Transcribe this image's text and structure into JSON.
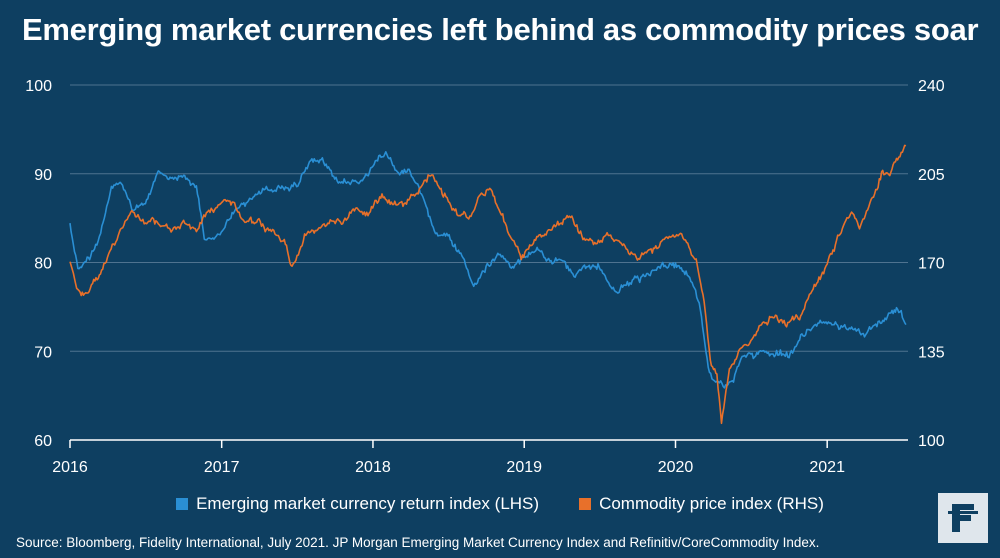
{
  "title": "Emerging market currencies left behind as commodity prices soar",
  "source": "Source: Bloomberg, Fidelity International, July 2021. JP Morgan Emerging Market Currency Index and Refinitiv/CoreCommodity Index.",
  "logo": {
    "text": "F",
    "icon": "fidelity-logo-icon"
  },
  "colors": {
    "background": "#0e3f61",
    "em_series": "#2a8fd4",
    "commodity_series": "#e8702a",
    "grid": "#4f7390",
    "logo_bg": "#dfe6ec",
    "logo_fg": "#0e3f61"
  },
  "chart_data": {
    "type": "line",
    "x_ticks": [
      "2016",
      "2017",
      "2018",
      "2019",
      "2020",
      "2021"
    ],
    "xlim": [
      "2016-01-01",
      "2021-07-15"
    ],
    "left_axis": {
      "ticks": [
        "60",
        "70",
        "80",
        "90",
        "100"
      ],
      "ylim": [
        60,
        100
      ]
    },
    "right_axis": {
      "ticks": [
        "100",
        "135",
        "170",
        "205",
        "240"
      ],
      "ylim": [
        100,
        240
      ]
    },
    "grid": true,
    "legend_position": "bottom",
    "series": [
      {
        "name": "Emerging market currency return index (LHS)",
        "axis": "left",
        "points": [
          [
            "2016-01-01",
            84.0
          ],
          [
            "2016-01-20",
            79.5
          ],
          [
            "2016-02-20",
            80.5
          ],
          [
            "2016-03-15",
            83.5
          ],
          [
            "2016-04-10",
            88.5
          ],
          [
            "2016-05-01",
            89.5
          ],
          [
            "2016-06-01",
            86.0
          ],
          [
            "2016-07-01",
            87.0
          ],
          [
            "2016-08-01",
            90.5
          ],
          [
            "2016-09-01",
            89.0
          ],
          [
            "2016-10-01",
            89.5
          ],
          [
            "2016-11-01",
            88.5
          ],
          [
            "2016-11-20",
            83.0
          ],
          [
            "2016-12-31",
            83.5
          ],
          [
            "2017-02-01",
            86.0
          ],
          [
            "2017-03-01",
            86.5
          ],
          [
            "2017-04-01",
            88.0
          ],
          [
            "2017-05-01",
            88.5
          ],
          [
            "2017-06-01",
            88.5
          ],
          [
            "2017-07-01",
            89.0
          ],
          [
            "2017-08-01",
            91.5
          ],
          [
            "2017-09-01",
            92.0
          ],
          [
            "2017-10-01",
            89.5
          ],
          [
            "2017-11-01",
            89.0
          ],
          [
            "2017-12-01",
            89.5
          ],
          [
            "2018-01-15",
            91.5
          ],
          [
            "2018-02-01",
            92.5
          ],
          [
            "2018-03-01",
            90.5
          ],
          [
            "2018-04-01",
            90.5
          ],
          [
            "2018-05-01",
            87.5
          ],
          [
            "2018-06-01",
            83.5
          ],
          [
            "2018-07-01",
            83.0
          ],
          [
            "2018-08-15",
            79.5
          ],
          [
            "2018-09-01",
            77.5
          ],
          [
            "2018-10-01",
            79.5
          ],
          [
            "2018-11-01",
            80.5
          ],
          [
            "2018-12-01",
            79.5
          ],
          [
            "2019-01-01",
            80.5
          ],
          [
            "2019-02-01",
            81.5
          ],
          [
            "2019-03-01",
            80.5
          ],
          [
            "2019-04-01",
            80.0
          ],
          [
            "2019-05-01",
            78.5
          ],
          [
            "2019-06-01",
            79.5
          ],
          [
            "2019-07-01",
            79.5
          ],
          [
            "2019-08-01",
            77.0
          ],
          [
            "2019-09-01",
            77.5
          ],
          [
            "2019-10-01",
            78.0
          ],
          [
            "2019-11-01",
            78.5
          ],
          [
            "2019-12-01",
            79.5
          ],
          [
            "2020-01-15",
            79.5
          ],
          [
            "2020-02-10",
            77.5
          ],
          [
            "2020-03-01",
            75.0
          ],
          [
            "2020-03-20",
            68.0
          ],
          [
            "2020-04-01",
            66.5
          ],
          [
            "2020-05-01",
            66.0
          ],
          [
            "2020-05-20",
            67.0
          ],
          [
            "2020-06-10",
            69.5
          ],
          [
            "2020-07-01",
            69.5
          ],
          [
            "2020-08-01",
            70.0
          ],
          [
            "2020-09-01",
            70.0
          ],
          [
            "2020-10-01",
            69.5
          ],
          [
            "2020-11-01",
            71.5
          ],
          [
            "2020-12-01",
            73.0
          ],
          [
            "2021-01-01",
            73.5
          ],
          [
            "2021-02-01",
            73.0
          ],
          [
            "2021-03-01",
            72.5
          ],
          [
            "2021-04-01",
            71.5
          ],
          [
            "2021-05-01",
            73.0
          ],
          [
            "2021-06-01",
            74.0
          ],
          [
            "2021-06-20",
            74.5
          ],
          [
            "2021-07-10",
            73.0
          ]
        ]
      },
      {
        "name": "Commodity price index (RHS)",
        "axis": "right",
        "points": [
          [
            "2016-01-01",
            170.0
          ],
          [
            "2016-01-20",
            160.0
          ],
          [
            "2016-02-05",
            157.0
          ],
          [
            "2016-03-01",
            163.0
          ],
          [
            "2016-03-20",
            168.0
          ],
          [
            "2016-04-15",
            178.0
          ],
          [
            "2016-05-10",
            185.0
          ],
          [
            "2016-06-01",
            191.0
          ],
          [
            "2016-07-01",
            186.0
          ],
          [
            "2016-08-01",
            185.0
          ],
          [
            "2016-09-01",
            182.0
          ],
          [
            "2016-10-01",
            186.0
          ],
          [
            "2016-11-01",
            183.0
          ],
          [
            "2016-12-01",
            190.0
          ],
          [
            "2017-01-01",
            194.0
          ],
          [
            "2017-02-01",
            192.0
          ],
          [
            "2017-03-01",
            186.0
          ],
          [
            "2017-04-01",
            185.0
          ],
          [
            "2017-05-01",
            181.0
          ],
          [
            "2017-06-01",
            178.0
          ],
          [
            "2017-06-20",
            168.0
          ],
          [
            "2017-07-20",
            180.0
          ],
          [
            "2017-08-15",
            182.0
          ],
          [
            "2017-09-20",
            185.0
          ],
          [
            "2017-10-20",
            186.0
          ],
          [
            "2017-11-20",
            191.0
          ],
          [
            "2017-12-20",
            190.0
          ],
          [
            "2018-01-20",
            196.0
          ],
          [
            "2018-02-20",
            192.0
          ],
          [
            "2018-03-20",
            193.0
          ],
          [
            "2018-04-20",
            197.0
          ],
          [
            "2018-05-20",
            205.0
          ],
          [
            "2018-06-20",
            198.0
          ],
          [
            "2018-07-20",
            190.0
          ],
          [
            "2018-08-20",
            188.0
          ],
          [
            "2018-09-20",
            196.0
          ],
          [
            "2018-10-10",
            199.0
          ],
          [
            "2018-11-01",
            192.0
          ],
          [
            "2018-12-01",
            180.0
          ],
          [
            "2018-12-25",
            172.0
          ],
          [
            "2019-01-20",
            178.0
          ],
          [
            "2019-02-20",
            182.0
          ],
          [
            "2019-03-20",
            184.0
          ],
          [
            "2019-04-20",
            188.0
          ],
          [
            "2019-05-20",
            181.0
          ],
          [
            "2019-06-20",
            177.0
          ],
          [
            "2019-07-20",
            180.0
          ],
          [
            "2019-08-20",
            178.0
          ],
          [
            "2019-09-10",
            175.0
          ],
          [
            "2019-10-01",
            171.0
          ],
          [
            "2019-10-20",
            174.0
          ],
          [
            "2019-11-20",
            176.0
          ],
          [
            "2019-12-20",
            180.0
          ],
          [
            "2020-01-10",
            182.0
          ],
          [
            "2020-01-25",
            180.0
          ],
          [
            "2020-02-20",
            172.0
          ],
          [
            "2020-03-10",
            155.0
          ],
          [
            "2020-03-25",
            132.0
          ],
          [
            "2020-04-10",
            125.0
          ],
          [
            "2020-04-21",
            107.0
          ],
          [
            "2020-05-10",
            128.0
          ],
          [
            "2020-06-01",
            134.0
          ],
          [
            "2020-07-01",
            140.0
          ],
          [
            "2020-08-01",
            147.0
          ],
          [
            "2020-09-01",
            150.0
          ],
          [
            "2020-10-01",
            146.0
          ],
          [
            "2020-11-01",
            150.0
          ],
          [
            "2020-12-01",
            160.0
          ],
          [
            "2021-01-01",
            170.0
          ],
          [
            "2021-02-01",
            183.0
          ],
          [
            "2021-03-01",
            190.0
          ],
          [
            "2021-03-20",
            184.0
          ],
          [
            "2021-04-20",
            194.0
          ],
          [
            "2021-05-15",
            206.0
          ],
          [
            "2021-06-01",
            204.0
          ],
          [
            "2021-06-20",
            212.0
          ],
          [
            "2021-07-10",
            216.0
          ]
        ]
      }
    ]
  }
}
